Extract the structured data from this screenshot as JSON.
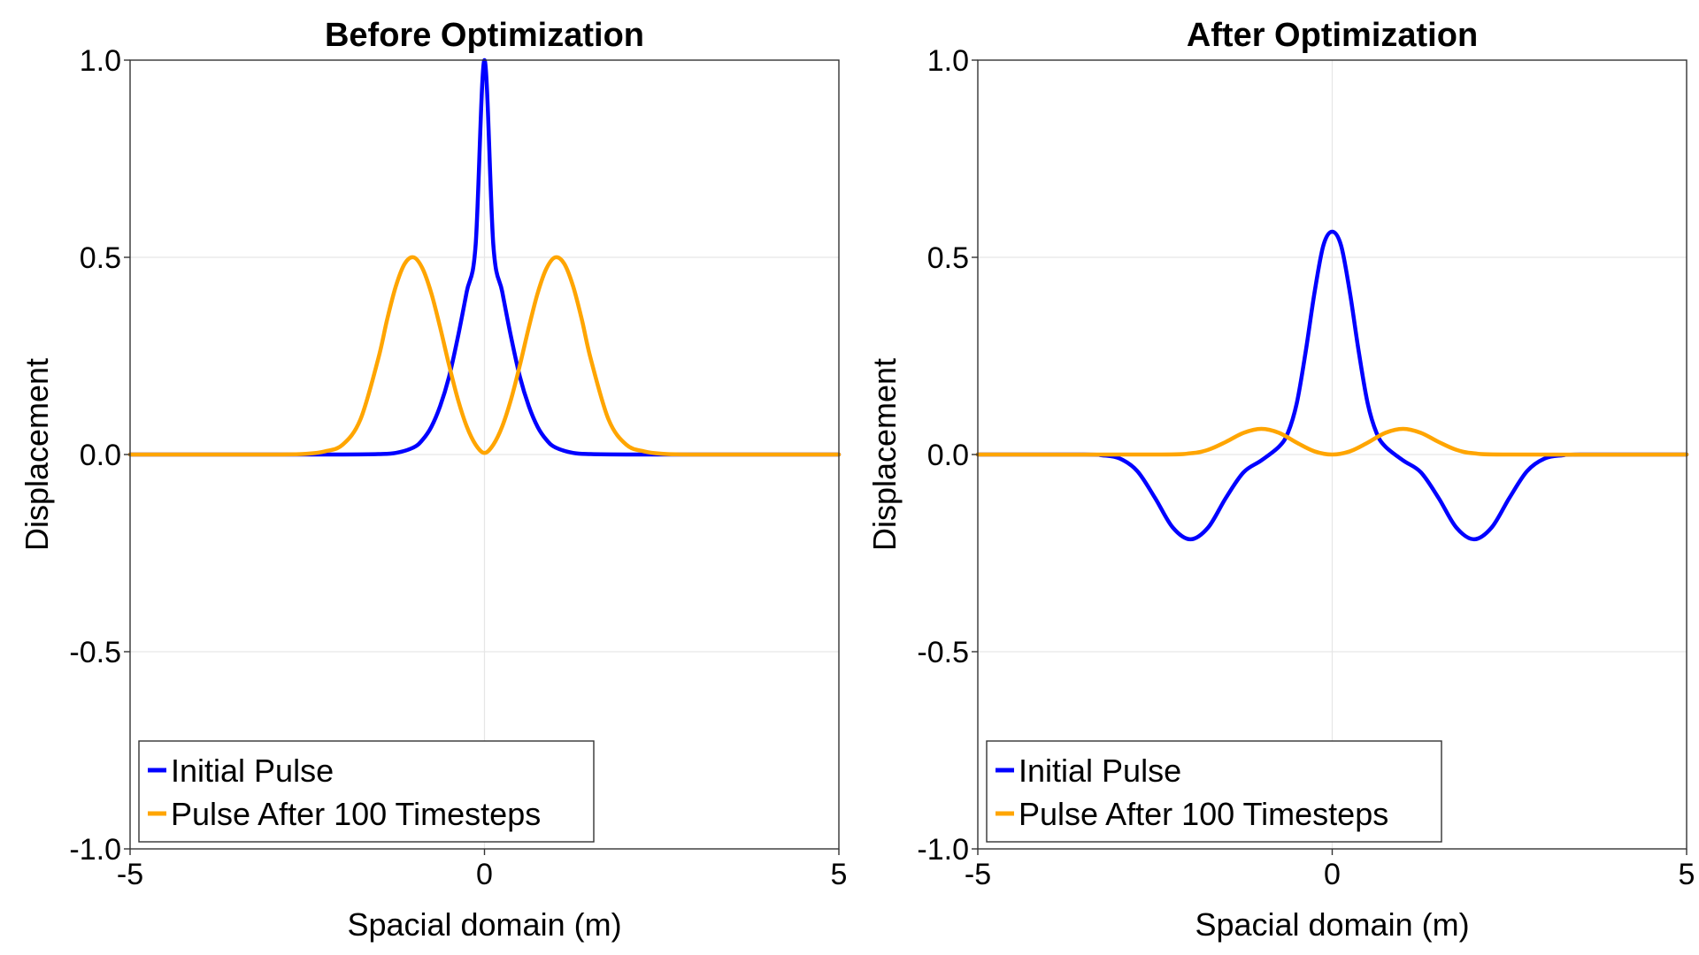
{
  "chart_data": [
    {
      "type": "line",
      "title": "Before Optimization",
      "xlabel": "Spacial domain (m)",
      "ylabel": "Displacement",
      "xlim": [
        -5,
        5
      ],
      "ylim": [
        -1.0,
        1.0
      ],
      "xticks": [
        "-5",
        "0",
        "5"
      ],
      "yticks": [
        "-1.0",
        "-0.5",
        "0.0",
        "0.5",
        "1.0"
      ],
      "grid": true,
      "legend_position": "bottom-left",
      "series": [
        {
          "name": "Initial Pulse",
          "color": "#0000ff",
          "x": [
            -5,
            -3,
            -2,
            -1.5,
            -1.25,
            -1,
            -0.875,
            -0.75,
            -0.625,
            -0.5,
            -0.375,
            -0.25,
            -0.125,
            0,
            0.125,
            0.25,
            0.375,
            0.5,
            0.625,
            0.75,
            0.875,
            1,
            1.25,
            1.5,
            2,
            3,
            5
          ],
          "y": [
            0,
            0,
            0,
            0.001,
            0.004,
            0.018,
            0.037,
            0.07,
            0.123,
            0.197,
            0.298,
            0.413,
            0.531,
            1.0,
            0.531,
            0.413,
            0.298,
            0.197,
            0.123,
            0.07,
            0.037,
            0.018,
            0.004,
            0.001,
            0,
            0,
            0
          ]
        },
        {
          "name": "Pulse After 100 Timesteps",
          "color": "#ffa500",
          "x": [
            -5,
            -3,
            -2.5,
            -2.25,
            -2,
            -1.75,
            -1.5,
            -1.375,
            -1.25,
            -1.125,
            -1,
            -0.875,
            -0.75,
            -0.625,
            -0.5,
            -0.375,
            -0.25,
            -0.125,
            0,
            0.125,
            0.25,
            0.375,
            0.5,
            0.625,
            0.75,
            0.875,
            1,
            1.125,
            1.25,
            1.375,
            1.5,
            1.75,
            2,
            2.25,
            2.5,
            3,
            5
          ],
          "y": [
            0,
            0,
            0.002,
            0.008,
            0.025,
            0.089,
            0.242,
            0.341,
            0.427,
            0.484,
            0.5,
            0.472,
            0.409,
            0.322,
            0.227,
            0.14,
            0.071,
            0.025,
            0.004,
            0.025,
            0.071,
            0.14,
            0.227,
            0.322,
            0.409,
            0.472,
            0.5,
            0.484,
            0.427,
            0.341,
            0.242,
            0.089,
            0.025,
            0.008,
            0.002,
            0,
            0
          ]
        }
      ]
    },
    {
      "type": "line",
      "title": "After Optimization",
      "xlabel": "Spacial domain (m)",
      "ylabel": "Displacement",
      "xlim": [
        -5,
        5
      ],
      "ylim": [
        -1.0,
        1.0
      ],
      "xticks": [
        "-5",
        "0",
        "5"
      ],
      "yticks": [
        "-1.0",
        "-0.5",
        "0.0",
        "0.5",
        "1.0"
      ],
      "grid": true,
      "legend_position": "bottom-left",
      "series": [
        {
          "name": "Initial Pulse",
          "color": "#0000ff",
          "x": [
            -5,
            -3.5,
            -3.25,
            -3,
            -2.75,
            -2.5,
            -2.25,
            -2,
            -1.75,
            -1.5,
            -1.25,
            -1,
            -0.75,
            -0.625,
            -0.5,
            -0.375,
            -0.25,
            -0.125,
            0,
            0.125,
            0.25,
            0.375,
            0.5,
            0.625,
            0.75,
            1,
            1.25,
            1.5,
            1.75,
            2,
            2.25,
            2.5,
            2.75,
            3,
            3.25,
            3.5,
            5
          ],
          "y": [
            0,
            0,
            -0.002,
            -0.01,
            -0.042,
            -0.11,
            -0.185,
            -0.215,
            -0.185,
            -0.11,
            -0.045,
            -0.015,
            0.02,
            0.055,
            0.13,
            0.26,
            0.41,
            0.53,
            0.565,
            0.53,
            0.41,
            0.26,
            0.13,
            0.055,
            0.02,
            -0.015,
            -0.045,
            -0.11,
            -0.185,
            -0.215,
            -0.185,
            -0.11,
            -0.042,
            -0.01,
            -0.002,
            0,
            0
          ]
        },
        {
          "name": "Pulse After 100 Timesteps",
          "color": "#ffa500",
          "x": [
            -5,
            -2.5,
            -2,
            -1.75,
            -1.5,
            -1.25,
            -1,
            -0.75,
            -0.5,
            -0.25,
            0,
            0.25,
            0.5,
            0.75,
            1,
            1.25,
            1.5,
            1.75,
            2,
            2.5,
            5
          ],
          "y": [
            0,
            0,
            0.003,
            0.012,
            0.032,
            0.055,
            0.065,
            0.055,
            0.03,
            0.008,
            0,
            0.008,
            0.03,
            0.055,
            0.065,
            0.055,
            0.032,
            0.012,
            0.003,
            0,
            0
          ]
        }
      ]
    }
  ]
}
